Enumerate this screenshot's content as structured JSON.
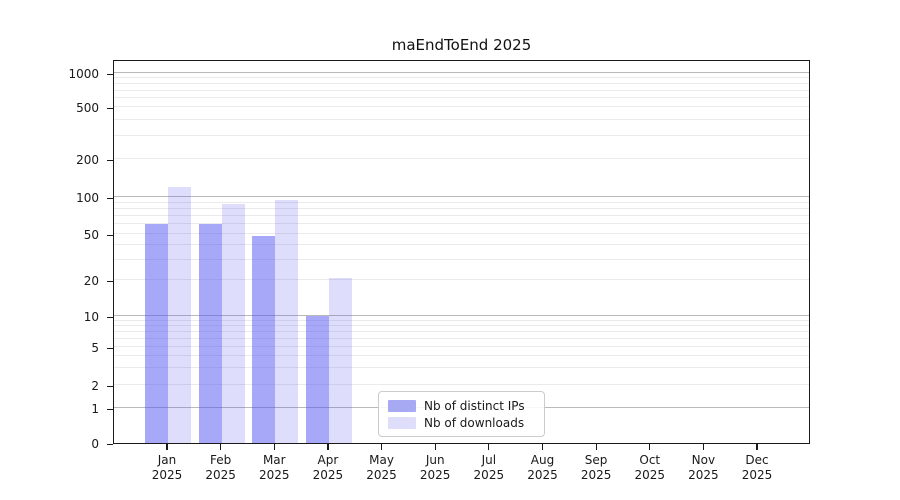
{
  "title": "maEndToEnd 2025",
  "chart_data": {
    "type": "bar",
    "title": "maEndToEnd 2025",
    "categories": [
      "Jan",
      "Feb",
      "Mar",
      "Apr",
      "May",
      "Jun",
      "Jul",
      "Aug",
      "Sep",
      "Oct",
      "Nov",
      "Dec"
    ],
    "year_label": "2025",
    "series": [
      {
        "name": "Nb of distinct IPs",
        "values": [
          60,
          60,
          48,
          10,
          0,
          0,
          0,
          0,
          0,
          0,
          0,
          0
        ],
        "color": "rgba(80,82,240,0.5)",
        "legend_color": "#a7a9f3"
      },
      {
        "name": "Nb of downloads",
        "values": [
          120,
          88,
          95,
          21,
          0,
          0,
          0,
          0,
          0,
          0,
          0,
          0
        ],
        "color": "rgba(80,82,240,0.19)",
        "legend_color": "#dedefb"
      }
    ],
    "yticks": [
      0,
      1,
      2,
      5,
      10,
      20,
      50,
      100,
      200,
      500,
      1000
    ],
    "xlabel": "",
    "ylabel": "",
    "scale": "symlog",
    "grid": "horizontal",
    "legend_position": "lower center"
  }
}
